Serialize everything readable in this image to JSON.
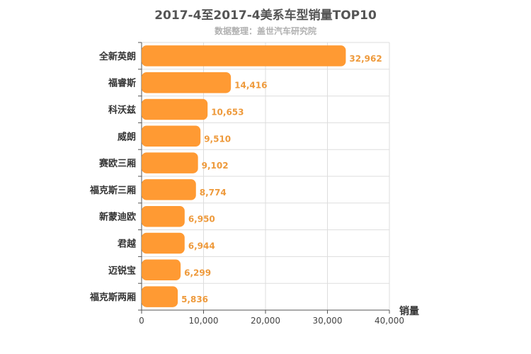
{
  "chart_data": {
    "type": "bar",
    "orientation": "horizontal",
    "title": "2017-4至2017-4美系车型销量TOP10",
    "subtitle": "数据整理：盖世汽车研究院",
    "xlabel": "销量",
    "ylabel": "",
    "xlim": [
      0,
      40000
    ],
    "xticks": [
      0,
      10000,
      20000,
      30000,
      40000
    ],
    "xtick_labels": [
      "0",
      "10,000",
      "20,000",
      "30,000",
      "40,000"
    ],
    "grid": true,
    "bar_color": "#ff9a33",
    "label_color": "#ee9a3c",
    "categories": [
      "全新英朗",
      "福睿斯",
      "科沃兹",
      "威朗",
      "赛欧三厢",
      "福克斯三厢",
      "新蒙迪欧",
      "君越",
      "迈锐宝",
      "福克斯两厢"
    ],
    "values": [
      32962,
      14416,
      10653,
      9510,
      9102,
      8774,
      6950,
      6944,
      6299,
      5836
    ],
    "value_labels": [
      "32,962",
      "14,416",
      "10,653",
      "9,510",
      "9,102",
      "8,774",
      "6,950",
      "6,944",
      "6,299",
      "5,836"
    ]
  }
}
